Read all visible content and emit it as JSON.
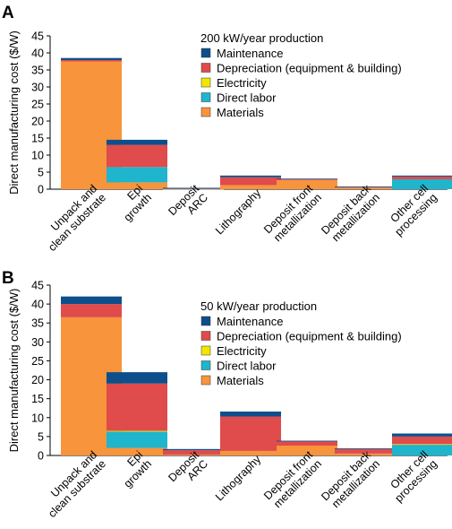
{
  "chart_data": [
    {
      "panel": "A",
      "type": "bar",
      "stacked": true,
      "title": "",
      "xlabel": "",
      "ylabel": "Direct manufacturing cost ($/W)",
      "ylim": [
        0,
        45
      ],
      "yticks": [
        0,
        5,
        10,
        15,
        20,
        25,
        30,
        35,
        40,
        45
      ],
      "legend_title": "200 kW/year production",
      "legend_position": "top-right",
      "categories": [
        [
          "Unpack and",
          "clean substrate"
        ],
        [
          "Epi",
          "growth"
        ],
        [
          "Deposit",
          "ARC"
        ],
        [
          "Lithography"
        ],
        [
          "Deposit front",
          "metallization"
        ],
        [
          "Deposit back",
          "metallization"
        ],
        [
          "Other cell",
          "processing"
        ]
      ],
      "series": [
        {
          "name": "Materials",
          "color": "#F7943C",
          "values": [
            37.5,
            2.0,
            0.1,
            1.2,
            2.7,
            0.5,
            0.0
          ]
        },
        {
          "name": "Direct labor",
          "color": "#1FB5CC",
          "values": [
            0.0,
            4.5,
            0.1,
            0.0,
            0.0,
            0.0,
            2.9
          ]
        },
        {
          "name": "Electricity",
          "color": "#F2E600",
          "values": [
            0.0,
            0.0,
            0.0,
            0.0,
            0.0,
            0.0,
            0.0
          ]
        },
        {
          "name": "Depreciation (equipment & building)",
          "color": "#E04B4B",
          "values": [
            0.4,
            6.5,
            0.1,
            2.3,
            0.3,
            0.2,
            0.8
          ]
        },
        {
          "name": "Maintenance",
          "color": "#0D4F8B",
          "values": [
            0.6,
            1.5,
            0.1,
            0.5,
            0.1,
            0.1,
            0.3
          ]
        }
      ]
    },
    {
      "panel": "B",
      "type": "bar",
      "stacked": true,
      "title": "",
      "xlabel": "",
      "ylabel": "Direct manufacturing cost ($/W)",
      "ylim": [
        0,
        45
      ],
      "yticks": [
        0,
        5,
        10,
        15,
        20,
        25,
        30,
        35,
        40,
        45
      ],
      "legend_title": "50 kW/year production",
      "legend_position": "top-right",
      "categories": [
        [
          "Unpack and",
          "clean substrate"
        ],
        [
          "Epi",
          "growth"
        ],
        [
          "Deposit",
          "ARC"
        ],
        [
          "Lithography"
        ],
        [
          "Deposit front",
          "metallization"
        ],
        [
          "Deposit back",
          "metallization"
        ],
        [
          "Other cell",
          "processing"
        ]
      ],
      "series": [
        {
          "name": "Materials",
          "color": "#F7943C",
          "values": [
            36.5,
            2.0,
            0.2,
            1.2,
            2.6,
            0.5,
            0.0
          ]
        },
        {
          "name": "Direct labor",
          "color": "#1FB5CC",
          "values": [
            0.0,
            4.3,
            0.0,
            0.0,
            0.0,
            0.0,
            2.9
          ]
        },
        {
          "name": "Electricity",
          "color": "#F2E600",
          "values": [
            0.0,
            0.2,
            0.0,
            0.0,
            0.0,
            0.0,
            0.1
          ]
        },
        {
          "name": "Depreciation (equipment & building)",
          "color": "#E04B4B",
          "values": [
            3.5,
            12.5,
            1.2,
            9.1,
            1.2,
            1.2,
            2.0
          ]
        },
        {
          "name": "Maintenance",
          "color": "#0D4F8B",
          "values": [
            2.0,
            3.0,
            0.3,
            1.3,
            0.1,
            0.2,
            0.8
          ]
        }
      ]
    }
  ],
  "legend_order": [
    "Maintenance",
    "Depreciation (equipment & building)",
    "Electricity",
    "Direct labor",
    "Materials"
  ]
}
